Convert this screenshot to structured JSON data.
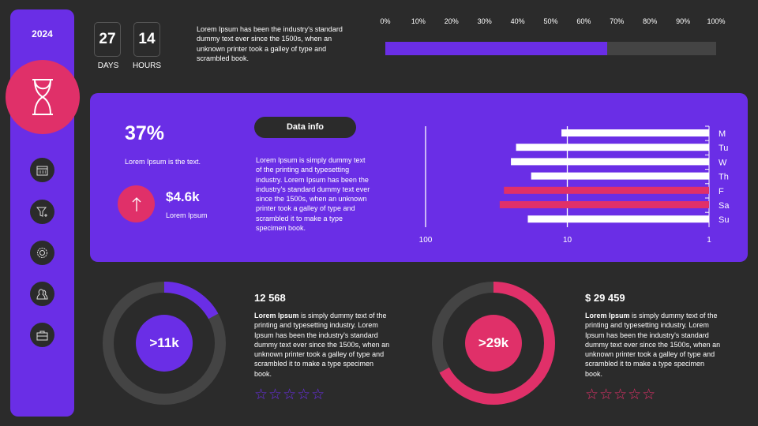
{
  "sidebar": {
    "year": "2024",
    "icons": [
      "hourglass-icon",
      "calendar-icon",
      "filter-icon",
      "gear-icon",
      "users-icon",
      "briefcase-icon"
    ]
  },
  "countdown": {
    "days": "27",
    "days_label": "DAYS",
    "hours": "14",
    "hours_label": "HOURS"
  },
  "intro_text": "Lorem Ipsum has been the industry's standard dummy text ever since the 1500s, when an unknown printer took a galley  of type and scrambled book.",
  "progress": {
    "ticks": [
      "0%",
      "10%",
      "20%",
      "30%",
      "40%",
      "50%",
      "60%",
      "70%",
      "80%",
      "90%",
      "100%"
    ],
    "value_percent": 67,
    "fill": "#6a2ee6",
    "track": "#444444"
  },
  "panel": {
    "percent": "37%",
    "percent_caption": "Lorem Ipsum is the text.",
    "amount": "$4.6k",
    "amount_caption": "Lorem Ipsum",
    "button": "Data info",
    "body": "Lorem Ipsum is simply dummy text of the printing and typesetting industry. Lorem Ipsum has been the industry's standard dummy text ever since the 1500s, when an unknown printer took a galley of type and scrambled it to make a type specimen book."
  },
  "chart_data": {
    "type": "bar",
    "orientation": "horizontal",
    "scale": "log",
    "reversed": true,
    "xlim": [
      100,
      1
    ],
    "ticks": [
      "100",
      "10",
      "1"
    ],
    "categories": [
      "M",
      "Tu",
      "W",
      "Th",
      "F",
      "Sa",
      "Su"
    ],
    "values": [
      11,
      23,
      25,
      18,
      28,
      30,
      19
    ],
    "colors": [
      "#ffffff",
      "#ffffff",
      "#ffffff",
      "#ffffff",
      "#e03069",
      "#e03069",
      "#ffffff"
    ]
  },
  "card1": {
    "center": ">11k",
    "value_percent": 17,
    "color": "#6a2ee6",
    "title": "12 568",
    "bold": "Lorem Ipsum",
    "text": " is simply dummy text of the printing and typesetting industry. Lorem Ipsum has been the industry's standard dummy text ever since the 1500s, when an unknown printer took a galley of type and scrambled it to make a type specimen book.",
    "stars": "☆☆☆☆☆",
    "rating": 0
  },
  "card2": {
    "center": ">29k",
    "value_percent": 67,
    "color": "#e03069",
    "title": "$ 29 459",
    "bold": "Lorem Ipsum",
    "text": " is simply dummy text of the printing and typesetting industry. Lorem Ipsum has been the industry's standard dummy text ever since the 1500s, when an unknown printer took a galley of type and scrambled it to make a type specimen book.",
    "stars": "☆☆☆☆☆",
    "rating": 0
  }
}
